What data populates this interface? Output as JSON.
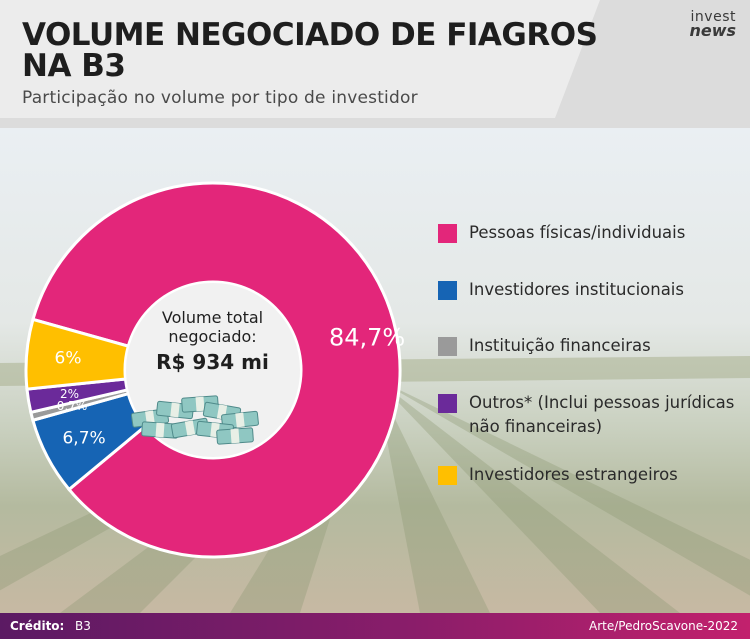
{
  "header": {
    "title": "VOLUME NEGOCIADO DE FIAGROS NA B3",
    "subtitle": "Participação no volume por tipo de investidor"
  },
  "logo": {
    "line1": "invest",
    "line2": "news"
  },
  "center": {
    "label": "Volume total negociado:",
    "value": "R$ 934 mi"
  },
  "colors": {
    "pink": "#e3267a",
    "blue": "#1664b4",
    "gray": "#9a9a9a",
    "purple": "#6b2a9a",
    "yellow": "#ffbf00"
  },
  "chart_data": {
    "type": "pie",
    "donut": true,
    "start_angle_deg": 285.7,
    "direction": "clockwise",
    "slices": [
      {
        "label": "Pessoas físicas/individuais",
        "value": 84.7,
        "display": "84,7%",
        "color": "#e3267a"
      },
      {
        "label": "Investidores institucionais",
        "value": 6.7,
        "display": "6,7%",
        "color": "#1664b4"
      },
      {
        "label": "Instituição financeiras",
        "value": 0.7,
        "display": "0,7%",
        "color": "#9a9a9a"
      },
      {
        "label": "Outros* (Inclui pessoas jurídicas não financeiras)",
        "value": 2,
        "display": "2%",
        "color": "#6b2a9a"
      },
      {
        "label": "Investidores estrangeiros",
        "value": 6,
        "display": "6%",
        "color": "#ffbf00"
      }
    ],
    "legend": [
      {
        "label": "Pessoas físicas/individuais",
        "color": "#e3267a"
      },
      {
        "label": "Investidores institucionais",
        "color": "#1664b4"
      },
      {
        "label": "Instituição financeiras",
        "color": "#9a9a9a"
      },
      {
        "label": "Outros* (Inclui pessoas jurídicas não financeiras)",
        "color": "#6b2a9a"
      },
      {
        "label": "Investidores estrangeiros",
        "color": "#ffbf00"
      }
    ]
  },
  "footer": {
    "credit_label": "Crédito:",
    "credit_value": "B3",
    "art": "Arte/PedroScavone-2022"
  }
}
